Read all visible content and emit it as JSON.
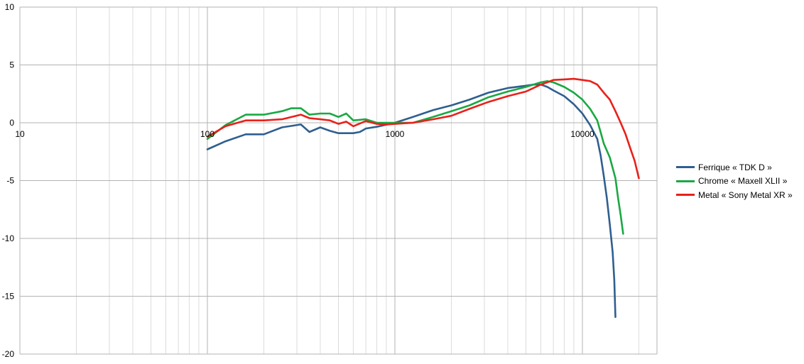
{
  "chart_data": {
    "type": "line",
    "x_scale": "log",
    "xlim": [
      10,
      20000
    ],
    "ylim": [
      -20,
      10
    ],
    "x_tick_labels": [
      "10",
      "100",
      "1000",
      "10000"
    ],
    "y_tick_labels": [
      "10",
      "5",
      "0",
      "-5",
      "-10",
      "-15",
      "-20"
    ],
    "grid": true,
    "legend_position": "right",
    "series": [
      {
        "name": "Ferrique « TDK D »",
        "color": "#2f5f8f",
        "points": [
          [
            100,
            -2.3
          ],
          [
            125,
            -1.6
          ],
          [
            160,
            -1.0
          ],
          [
            200,
            -1.0
          ],
          [
            250,
            -0.4
          ],
          [
            315,
            -0.15
          ],
          [
            350,
            -0.8
          ],
          [
            400,
            -0.4
          ],
          [
            450,
            -0.7
          ],
          [
            500,
            -0.9
          ],
          [
            600,
            -0.9
          ],
          [
            650,
            -0.8
          ],
          [
            700,
            -0.5
          ],
          [
            800,
            -0.35
          ],
          [
            1000,
            0.0
          ],
          [
            1250,
            0.5
          ],
          [
            1600,
            1.1
          ],
          [
            2000,
            1.5
          ],
          [
            2500,
            2.0
          ],
          [
            3150,
            2.6
          ],
          [
            4000,
            3.0
          ],
          [
            5000,
            3.2
          ],
          [
            5500,
            3.3
          ],
          [
            6000,
            3.3
          ],
          [
            6500,
            3.1
          ],
          [
            7000,
            2.8
          ],
          [
            8000,
            2.3
          ],
          [
            9000,
            1.6
          ],
          [
            10000,
            0.8
          ],
          [
            11000,
            -0.2
          ],
          [
            12000,
            -1.4
          ],
          [
            12500,
            -2.8
          ],
          [
            13000,
            -4.6
          ],
          [
            13500,
            -6.5
          ],
          [
            14000,
            -8.8
          ],
          [
            14500,
            -11.2
          ],
          [
            14800,
            -13.6
          ],
          [
            15000,
            -16.8
          ]
        ]
      },
      {
        "name": "Chrome « Maxell XLII »",
        "color": "#1aa843",
        "points": [
          [
            100,
            -1.4
          ],
          [
            125,
            -0.2
          ],
          [
            160,
            0.7
          ],
          [
            200,
            0.7
          ],
          [
            250,
            1.0
          ],
          [
            280,
            1.25
          ],
          [
            315,
            1.25
          ],
          [
            350,
            0.7
          ],
          [
            400,
            0.8
          ],
          [
            450,
            0.8
          ],
          [
            500,
            0.5
          ],
          [
            550,
            0.8
          ],
          [
            600,
            0.2
          ],
          [
            700,
            0.3
          ],
          [
            800,
            0.0
          ],
          [
            1000,
            0.0
          ],
          [
            1250,
            0.0
          ],
          [
            1600,
            0.5
          ],
          [
            2000,
            1.0
          ],
          [
            2500,
            1.5
          ],
          [
            3150,
            2.2
          ],
          [
            4000,
            2.7
          ],
          [
            5000,
            3.1
          ],
          [
            6000,
            3.5
          ],
          [
            6500,
            3.6
          ],
          [
            7000,
            3.5
          ],
          [
            8000,
            3.1
          ],
          [
            9000,
            2.6
          ],
          [
            10000,
            2.0
          ],
          [
            11000,
            1.2
          ],
          [
            12000,
            0.2
          ],
          [
            12500,
            -0.8
          ],
          [
            13000,
            -1.8
          ],
          [
            14000,
            -3.0
          ],
          [
            15000,
            -4.8
          ],
          [
            15500,
            -6.5
          ],
          [
            16000,
            -8.0
          ],
          [
            16500,
            -9.6
          ]
        ]
      },
      {
        "name": "Metal « Sony Metal XR »",
        "color": "#e8211a",
        "points": [
          [
            100,
            -1.2
          ],
          [
            125,
            -0.3
          ],
          [
            160,
            0.2
          ],
          [
            200,
            0.2
          ],
          [
            250,
            0.3
          ],
          [
            315,
            0.7
          ],
          [
            350,
            0.4
          ],
          [
            400,
            0.3
          ],
          [
            450,
            0.2
          ],
          [
            500,
            -0.1
          ],
          [
            550,
            0.1
          ],
          [
            600,
            -0.3
          ],
          [
            700,
            0.15
          ],
          [
            800,
            -0.1
          ],
          [
            900,
            -0.15
          ],
          [
            1000,
            -0.1
          ],
          [
            1250,
            0.0
          ],
          [
            1600,
            0.3
          ],
          [
            2000,
            0.6
          ],
          [
            2500,
            1.2
          ],
          [
            3150,
            1.8
          ],
          [
            4000,
            2.3
          ],
          [
            5000,
            2.7
          ],
          [
            6000,
            3.3
          ],
          [
            6500,
            3.5
          ],
          [
            7000,
            3.7
          ],
          [
            8000,
            3.75
          ],
          [
            9000,
            3.8
          ],
          [
            10000,
            3.7
          ],
          [
            11000,
            3.6
          ],
          [
            12000,
            3.3
          ],
          [
            13000,
            2.6
          ],
          [
            14000,
            2.0
          ],
          [
            15000,
            1.0
          ],
          [
            16000,
            0.0
          ],
          [
            17000,
            -1.0
          ],
          [
            18000,
            -2.2
          ],
          [
            19000,
            -3.3
          ],
          [
            20000,
            -4.8
          ]
        ]
      }
    ]
  }
}
